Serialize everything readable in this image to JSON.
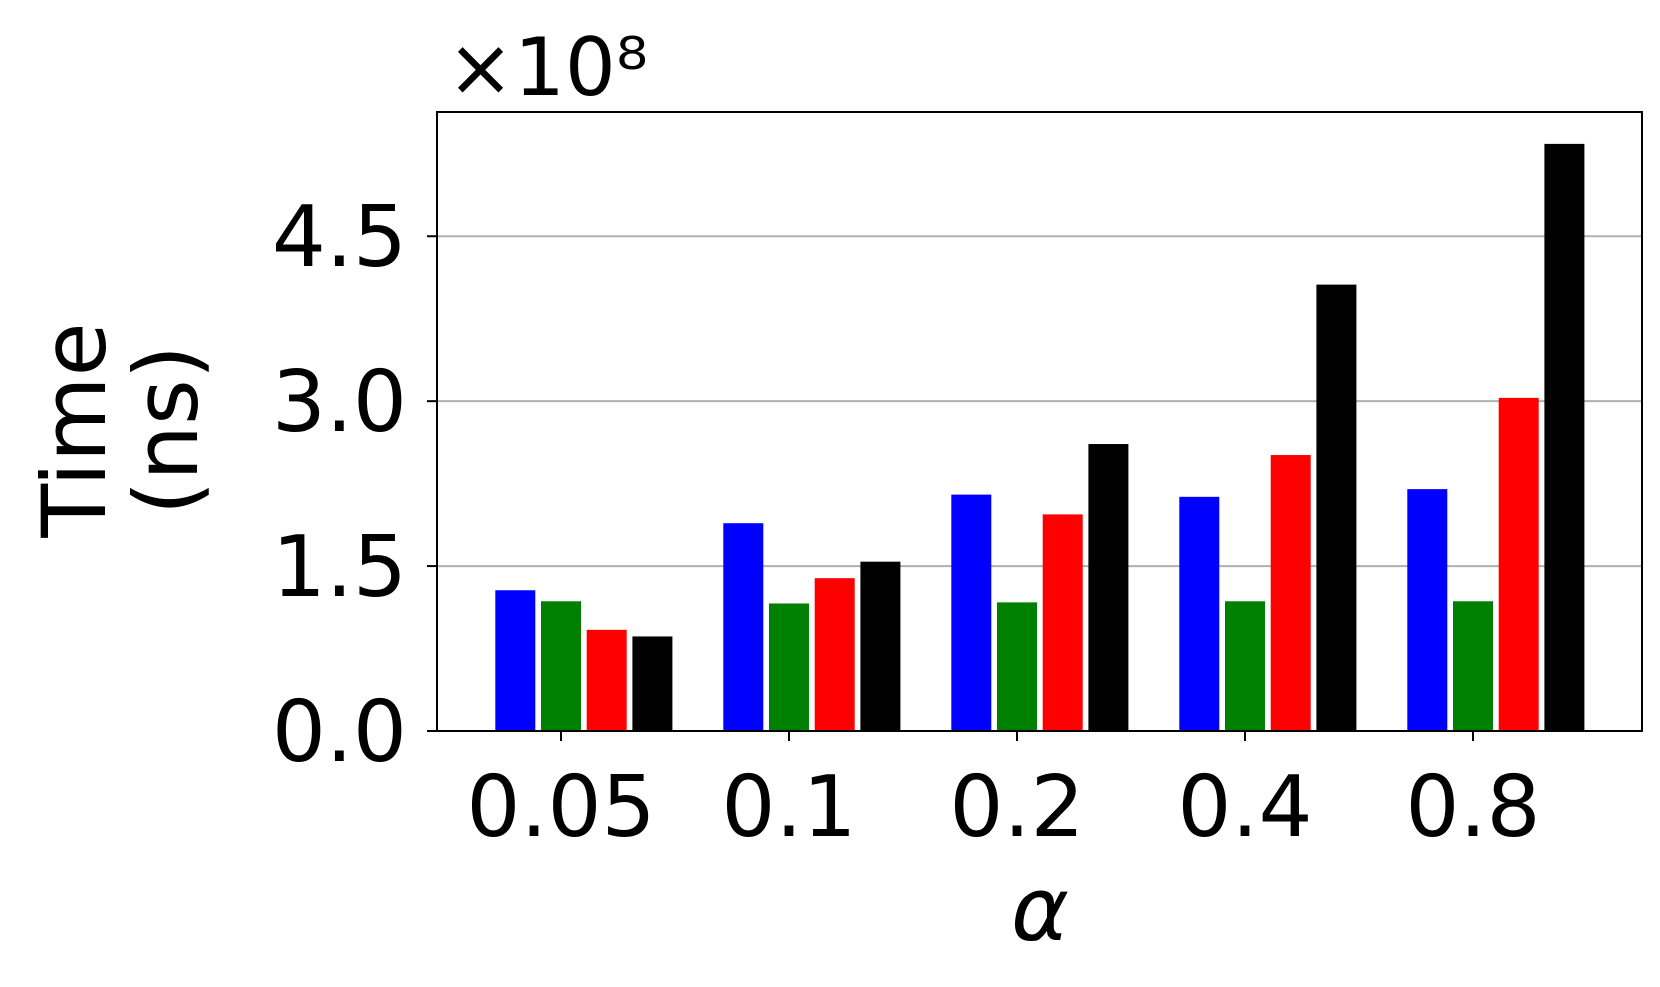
{
  "chart_data": {
    "type": "bar",
    "offset_text": "×10⁸",
    "xlabel": "α",
    "ylabel": [
      "Time",
      "(ns)"
    ],
    "categories": [
      "0.05",
      "0.1",
      "0.2",
      "0.4",
      "0.8"
    ],
    "series": [
      {
        "color": "#0000ff",
        "values": [
          1.28,
          1.89,
          2.15,
          2.13,
          2.2
        ]
      },
      {
        "color": "#008000",
        "values": [
          1.18,
          1.16,
          1.17,
          1.18,
          1.18
        ]
      },
      {
        "color": "#ff0000",
        "values": [
          0.92,
          1.39,
          1.97,
          2.51,
          3.03
        ]
      },
      {
        "color": "#000000",
        "values": [
          0.86,
          1.54,
          2.61,
          4.06,
          5.34
        ]
      }
    ],
    "ylim": [
      0,
      5.63
    ],
    "yticks": [
      {
        "value": 0,
        "label": "0.0"
      },
      1.5,
      {
        "value": 3,
        "label": "3.0"
      },
      4.5
    ],
    "grid": true
  }
}
